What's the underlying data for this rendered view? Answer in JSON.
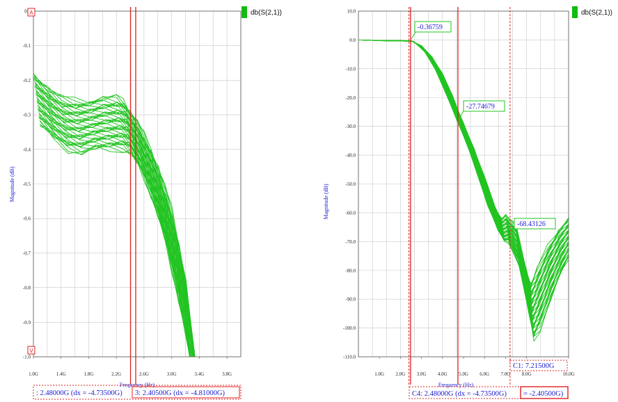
{
  "chart_data": [
    {
      "type": "line",
      "ylabel": "Magnitude (dB)",
      "xlabel": "Frequency (Hz)",
      "legend": "db(S(2,1))",
      "legend_color": "#11bb11",
      "series_color": "#22c422",
      "cursor_color": "#e02020",
      "xlim": [
        1.0,
        4.0
      ],
      "ylim": [
        -1.0,
        0.0
      ],
      "x_ticks": [
        "1.0G",
        "1.4G",
        "1.8G",
        "2.2G",
        "2.6G",
        "3.0G",
        "3.4G",
        "3.8G"
      ],
      "y_ticks": [
        "0.0",
        "-0.1",
        "-0.2",
        "-0.3",
        "-0.4",
        "-0.5",
        "-0.6",
        "-0.7",
        "-0.8",
        "-0.9",
        "-1.0"
      ],
      "y_tick_values": [
        0.0,
        -0.1,
        -0.2,
        -0.3,
        -0.4,
        -0.5,
        -0.6,
        -0.7,
        -0.8,
        -0.9,
        -1.0
      ],
      "x_tick_values": [
        1.0,
        1.4,
        1.8,
        2.2,
        2.6,
        3.0,
        3.4,
        3.8
      ],
      "cursors": [
        2.405,
        2.48
      ],
      "envelope": {
        "x": [
          1.0,
          1.2,
          1.4,
          1.6,
          1.8,
          2.0,
          2.2,
          2.3,
          2.4,
          2.5,
          2.6,
          2.7,
          2.8,
          2.9,
          3.0,
          3.1,
          3.2,
          3.3
        ],
        "top": [
          -0.18,
          -0.22,
          -0.25,
          -0.26,
          -0.26,
          -0.25,
          -0.25,
          -0.26,
          -0.29,
          -0.32,
          -0.36,
          -0.4,
          -0.45,
          -0.51,
          -0.58,
          -0.67,
          -0.78,
          -0.95
        ],
        "bottom": [
          -0.33,
          -0.37,
          -0.4,
          -0.41,
          -0.4,
          -0.4,
          -0.4,
          -0.41,
          -0.44,
          -0.48,
          -0.53,
          -0.59,
          -0.66,
          -0.74,
          -0.83,
          -0.93,
          -1.05,
          -1.1
        ]
      },
      "readouts": [
        ": 2.48000G (dx = -4.73500G)",
        "3: 2.40500G (dx = -4.81000G)"
      ]
    },
    {
      "type": "line",
      "ylabel": "Magnitude (dB)",
      "xlabel": "Frequency (Hz)",
      "legend": "db(S(2,1))",
      "legend_color": "#11bb11",
      "series_color": "#22c422",
      "cursor_color": "#e02020",
      "xlim": [
        0.0,
        10.0
      ],
      "ylim": [
        -110.0,
        10.0
      ],
      "x_ticks": [
        "1.0G",
        "2.0G",
        "3.0G",
        "4.0G",
        "5.0G",
        "6.0G",
        "7.0G",
        "8.0G",
        "10.0G"
      ],
      "x_tick_values": [
        1.0,
        2.0,
        3.0,
        4.0,
        5.0,
        6.0,
        7.0,
        8.0,
        10.0
      ],
      "y_ticks": [
        "10.0",
        "0.0",
        "-10.0",
        "-20.0",
        "-30.0",
        "-40.0",
        "-50.0",
        "-60.0",
        "-70.0",
        "-80.0",
        "-90.0",
        "-100.0",
        "-110.0"
      ],
      "y_tick_values": [
        10,
        0,
        -10,
        -20,
        -30,
        -40,
        -50,
        -60,
        -70,
        -80,
        -90,
        -100,
        -110
      ],
      "cursors": [
        2.405,
        2.48,
        4.735,
        7.215
      ],
      "envelope": {
        "x": [
          0.0,
          1.0,
          2.0,
          2.5,
          3.0,
          3.5,
          4.0,
          4.5,
          5.0,
          5.5,
          6.0,
          6.5,
          6.8,
          7.0,
          7.5,
          8.0,
          8.2,
          8.5,
          9.0,
          9.5,
          10.0
        ],
        "top": [
          0.0,
          -0.2,
          -0.2,
          -0.3,
          -2.0,
          -6.0,
          -12.0,
          -20.0,
          -29.0,
          -38.0,
          -48.0,
          -58.0,
          -62.0,
          -61.0,
          -65.0,
          -80.0,
          -85.0,
          -80.0,
          -72.0,
          -66.0,
          -62.0
        ],
        "bottom": [
          0.0,
          -0.3,
          -0.4,
          -0.6,
          -4.0,
          -10.0,
          -18.0,
          -27.0,
          -36.0,
          -46.0,
          -57.0,
          -66.0,
          -70.0,
          -70.0,
          -78.0,
          -96.0,
          -104.0,
          -100.0,
          -90.0,
          -81.0,
          -74.0
        ]
      },
      "markers": [
        "-0.36759",
        "-27.74679",
        "-68.43126"
      ],
      "readouts": [
        "C4: 2.48000G (dx = -4.73500G)",
        "= -2.40500G)",
        "C1: 7.21500G"
      ]
    }
  ]
}
